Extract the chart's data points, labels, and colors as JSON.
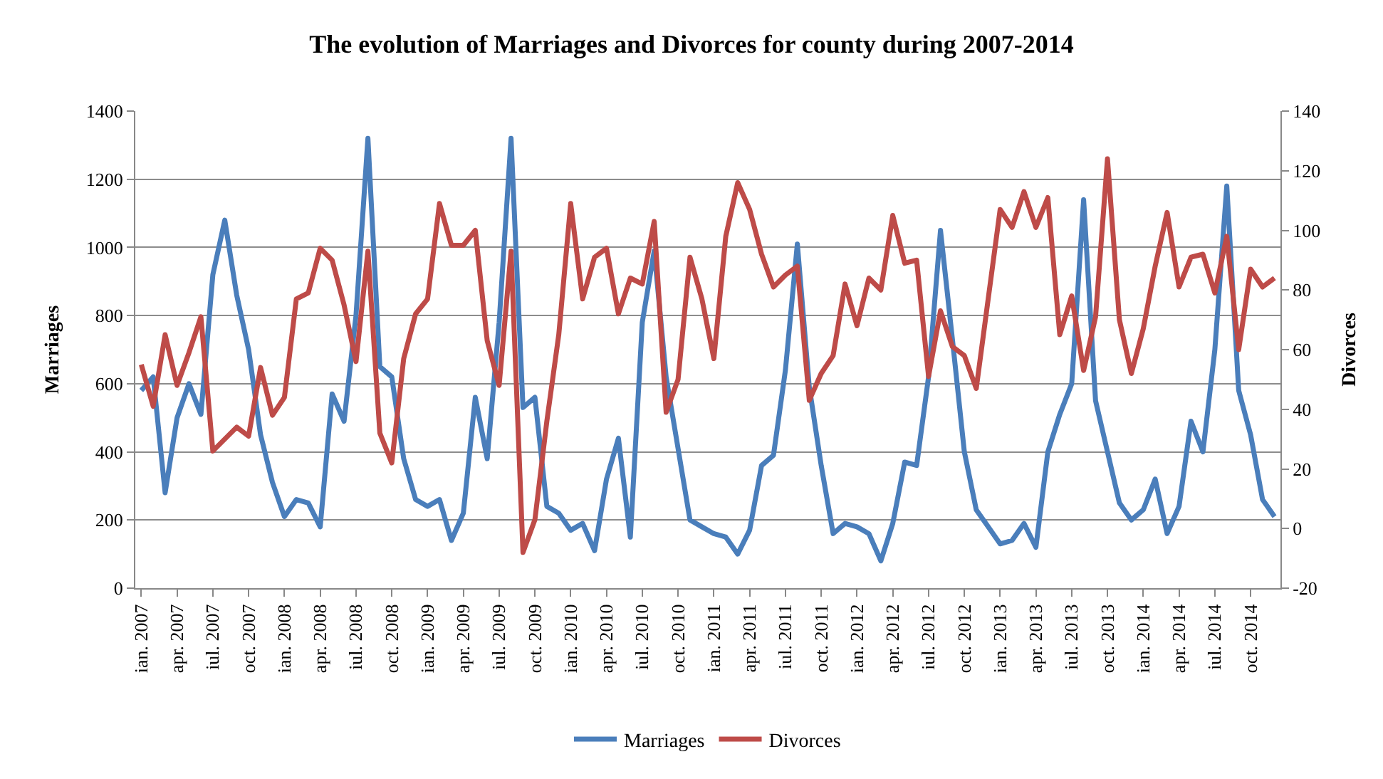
{
  "chart_data": {
    "type": "line",
    "title": "The evolution of Marriages and Divorces for county during 2007-2014",
    "ylabel": "Marriages",
    "y2label": "Divorces",
    "categories": [
      "ian. 2007",
      null,
      null,
      "apr. 2007",
      null,
      null,
      "iul. 2007",
      null,
      null,
      "oct. 2007",
      null,
      null,
      "ian. 2008",
      null,
      null,
      "apr. 2008",
      null,
      null,
      "iul. 2008",
      null,
      null,
      "oct. 2008",
      null,
      null,
      "ian. 2009",
      null,
      null,
      "apr. 2009",
      null,
      null,
      "iul. 2009",
      null,
      null,
      "oct. 2009",
      null,
      null,
      "ian. 2010",
      null,
      null,
      "apr. 2010",
      null,
      null,
      "iul. 2010",
      null,
      null,
      "oct. 2010",
      null,
      null,
      "ian. 2011",
      null,
      null,
      "apr. 2011",
      null,
      null,
      "iul. 2011",
      null,
      null,
      "oct. 2011",
      null,
      null,
      "ian. 2012",
      null,
      null,
      "apr. 2012",
      null,
      null,
      "iul. 2012",
      null,
      null,
      "oct. 2012",
      null,
      null,
      "ian. 2013",
      null,
      null,
      "apr. 2013",
      null,
      null,
      "iul. 2013",
      null,
      null,
      "oct. 2013",
      null,
      null,
      "ian. 2014",
      null,
      null,
      "apr. 2014",
      null,
      null,
      "iul. 2014",
      null,
      null,
      "oct. 2014",
      null,
      null
    ],
    "series": [
      {
        "name": "Marriages",
        "color": "#4a7ebb",
        "values": [
          580,
          620,
          280,
          500,
          600,
          510,
          920,
          1080,
          860,
          700,
          450,
          310,
          210,
          260,
          250,
          180,
          570,
          490,
          800,
          1320,
          650,
          620,
          380,
          260,
          240,
          260,
          140,
          220,
          560,
          380,
          780,
          1320,
          530,
          560,
          240,
          220,
          170,
          190,
          110,
          320,
          440,
          150,
          780,
          990,
          620,
          410,
          200,
          180,
          160,
          150,
          100,
          170,
          360,
          390,
          640,
          1010,
          590,
          360,
          160,
          190,
          180,
          160,
          80,
          190,
          370,
          360,
          620,
          1050,
          730,
          400,
          230,
          180,
          130,
          140,
          190,
          120,
          400,
          510,
          600,
          1140,
          550,
          400,
          250,
          200,
          230,
          320,
          160,
          240,
          490,
          400,
          700,
          1180,
          580,
          450,
          260,
          210
        ]
      },
      {
        "name": "Divorces",
        "color": "#be4b48",
        "axis": "y2",
        "values": [
          55,
          41,
          65,
          48,
          59,
          71,
          26,
          30,
          34,
          31,
          54,
          38,
          44,
          77,
          79,
          94,
          90,
          75,
          56,
          93,
          32,
          22,
          57,
          72,
          77,
          109,
          95,
          95,
          100,
          63,
          48,
          93,
          -8,
          3,
          36,
          65,
          109,
          77,
          91,
          94,
          72,
          84,
          82,
          103,
          39,
          50,
          91,
          77,
          57,
          98,
          116,
          107,
          92,
          81,
          85,
          88,
          43,
          52,
          58,
          82,
          68,
          84,
          80,
          105,
          89,
          90,
          51,
          73,
          61,
          58,
          47,
          77,
          107,
          101,
          113,
          101,
          111,
          65,
          78,
          53,
          71,
          124,
          70,
          52,
          67,
          88,
          106,
          81,
          91,
          92,
          79,
          98,
          60,
          87,
          81,
          84
        ]
      }
    ],
    "ylim": [
      0,
      1400
    ],
    "yticks": [
      0,
      200,
      400,
      600,
      800,
      1000,
      1200,
      1400
    ],
    "y2lim": [
      -20,
      140
    ],
    "y2ticks": [
      -20,
      0,
      20,
      40,
      60,
      80,
      100,
      120,
      140
    ],
    "grid": "y",
    "legend": "bottom",
    "line_style": "solid",
    "marker": "none"
  }
}
